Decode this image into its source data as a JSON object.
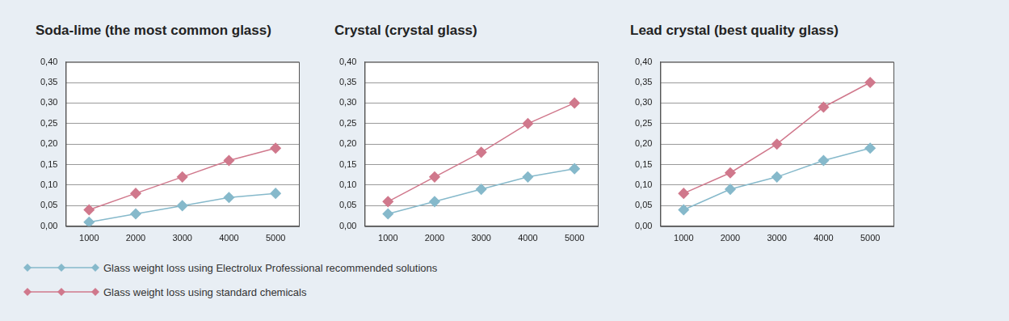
{
  "chart_data": [
    {
      "type": "line",
      "title": "Soda-lime (the most common glass)",
      "categories": [
        "1000",
        "2000",
        "3000",
        "4000",
        "5000"
      ],
      "series": [
        {
          "name": "Glass weight loss using Electrolux Professional recommended solutions",
          "color": "#86b9cb",
          "marker": "diamond",
          "values": [
            0.01,
            0.03,
            0.05,
            0.07,
            0.08
          ]
        },
        {
          "name": "Glass weight loss using standard chemicals",
          "color": "#d0788c",
          "marker": "diamond",
          "values": [
            0.04,
            0.08,
            0.12,
            0.16,
            0.19
          ]
        }
      ],
      "ylim": [
        0,
        0.4
      ],
      "yticks": [
        {
          "value": 0,
          "label": "0,00"
        },
        {
          "value": 0.05,
          "label": "0,05"
        },
        {
          "value": 0.1,
          "label": "0,10"
        },
        {
          "value": 0.15,
          "label": "0,15"
        },
        {
          "value": 0.2,
          "label": "0,20"
        },
        {
          "value": 0.25,
          "label": "0,25"
        },
        {
          "value": 0.3,
          "label": "0,30"
        },
        {
          "value": 0.35,
          "label": "0,35"
        },
        {
          "value": 0.4,
          "label": "0,40"
        }
      ],
      "grid": true,
      "legend": "bottom"
    },
    {
      "type": "line",
      "title": "Crystal (crystal glass)",
      "categories": [
        "1000",
        "2000",
        "3000",
        "4000",
        "5000"
      ],
      "series": [
        {
          "name": "Glass weight loss using Electrolux Professional recommended solutions",
          "color": "#86b9cb",
          "marker": "diamond",
          "values": [
            0.03,
            0.06,
            0.09,
            0.12,
            0.14
          ]
        },
        {
          "name": "Glass weight loss using standard chemicals",
          "color": "#d0788c",
          "marker": "diamond",
          "values": [
            0.06,
            0.12,
            0.18,
            0.25,
            0.3
          ]
        }
      ],
      "ylim": [
        0,
        0.4
      ],
      "yticks": [
        {
          "value": 0,
          "label": "0,00"
        },
        {
          "value": 0.05,
          "label": "0,05"
        },
        {
          "value": 0.1,
          "label": "0,10"
        },
        {
          "value": 0.15,
          "label": "0,15"
        },
        {
          "value": 0.2,
          "label": "0,20"
        },
        {
          "value": 0.25,
          "label": "0,25"
        },
        {
          "value": 0.3,
          "label": "0,30"
        },
        {
          "value": 0.35,
          "label": "0,35"
        },
        {
          "value": 0.4,
          "label": "0,40"
        }
      ],
      "grid": true
    },
    {
      "type": "line",
      "title": "Lead crystal (best quality glass)",
      "categories": [
        "1000",
        "2000",
        "3000",
        "4000",
        "5000"
      ],
      "series": [
        {
          "name": "Glass weight loss using Electrolux Professional recommended solutions",
          "color": "#86b9cb",
          "marker": "diamond",
          "values": [
            0.04,
            0.09,
            0.12,
            0.16,
            0.19
          ]
        },
        {
          "name": "Glass weight loss using standard chemicals",
          "color": "#d0788c",
          "marker": "diamond",
          "values": [
            0.08,
            0.13,
            0.2,
            0.29,
            0.35
          ]
        }
      ],
      "ylim": [
        0,
        0.4
      ],
      "yticks": [
        {
          "value": 0,
          "label": "0,00"
        },
        {
          "value": 0.05,
          "label": "0,05"
        },
        {
          "value": 0.1,
          "label": "0,10"
        },
        {
          "value": 0.15,
          "label": "0,15"
        },
        {
          "value": 0.2,
          "label": "0,20"
        },
        {
          "value": 0.25,
          "label": "0,25"
        },
        {
          "value": 0.3,
          "label": "0,30"
        },
        {
          "value": 0.35,
          "label": "0,35"
        },
        {
          "value": 0.4,
          "label": "0,40"
        }
      ],
      "grid": true
    }
  ]
}
